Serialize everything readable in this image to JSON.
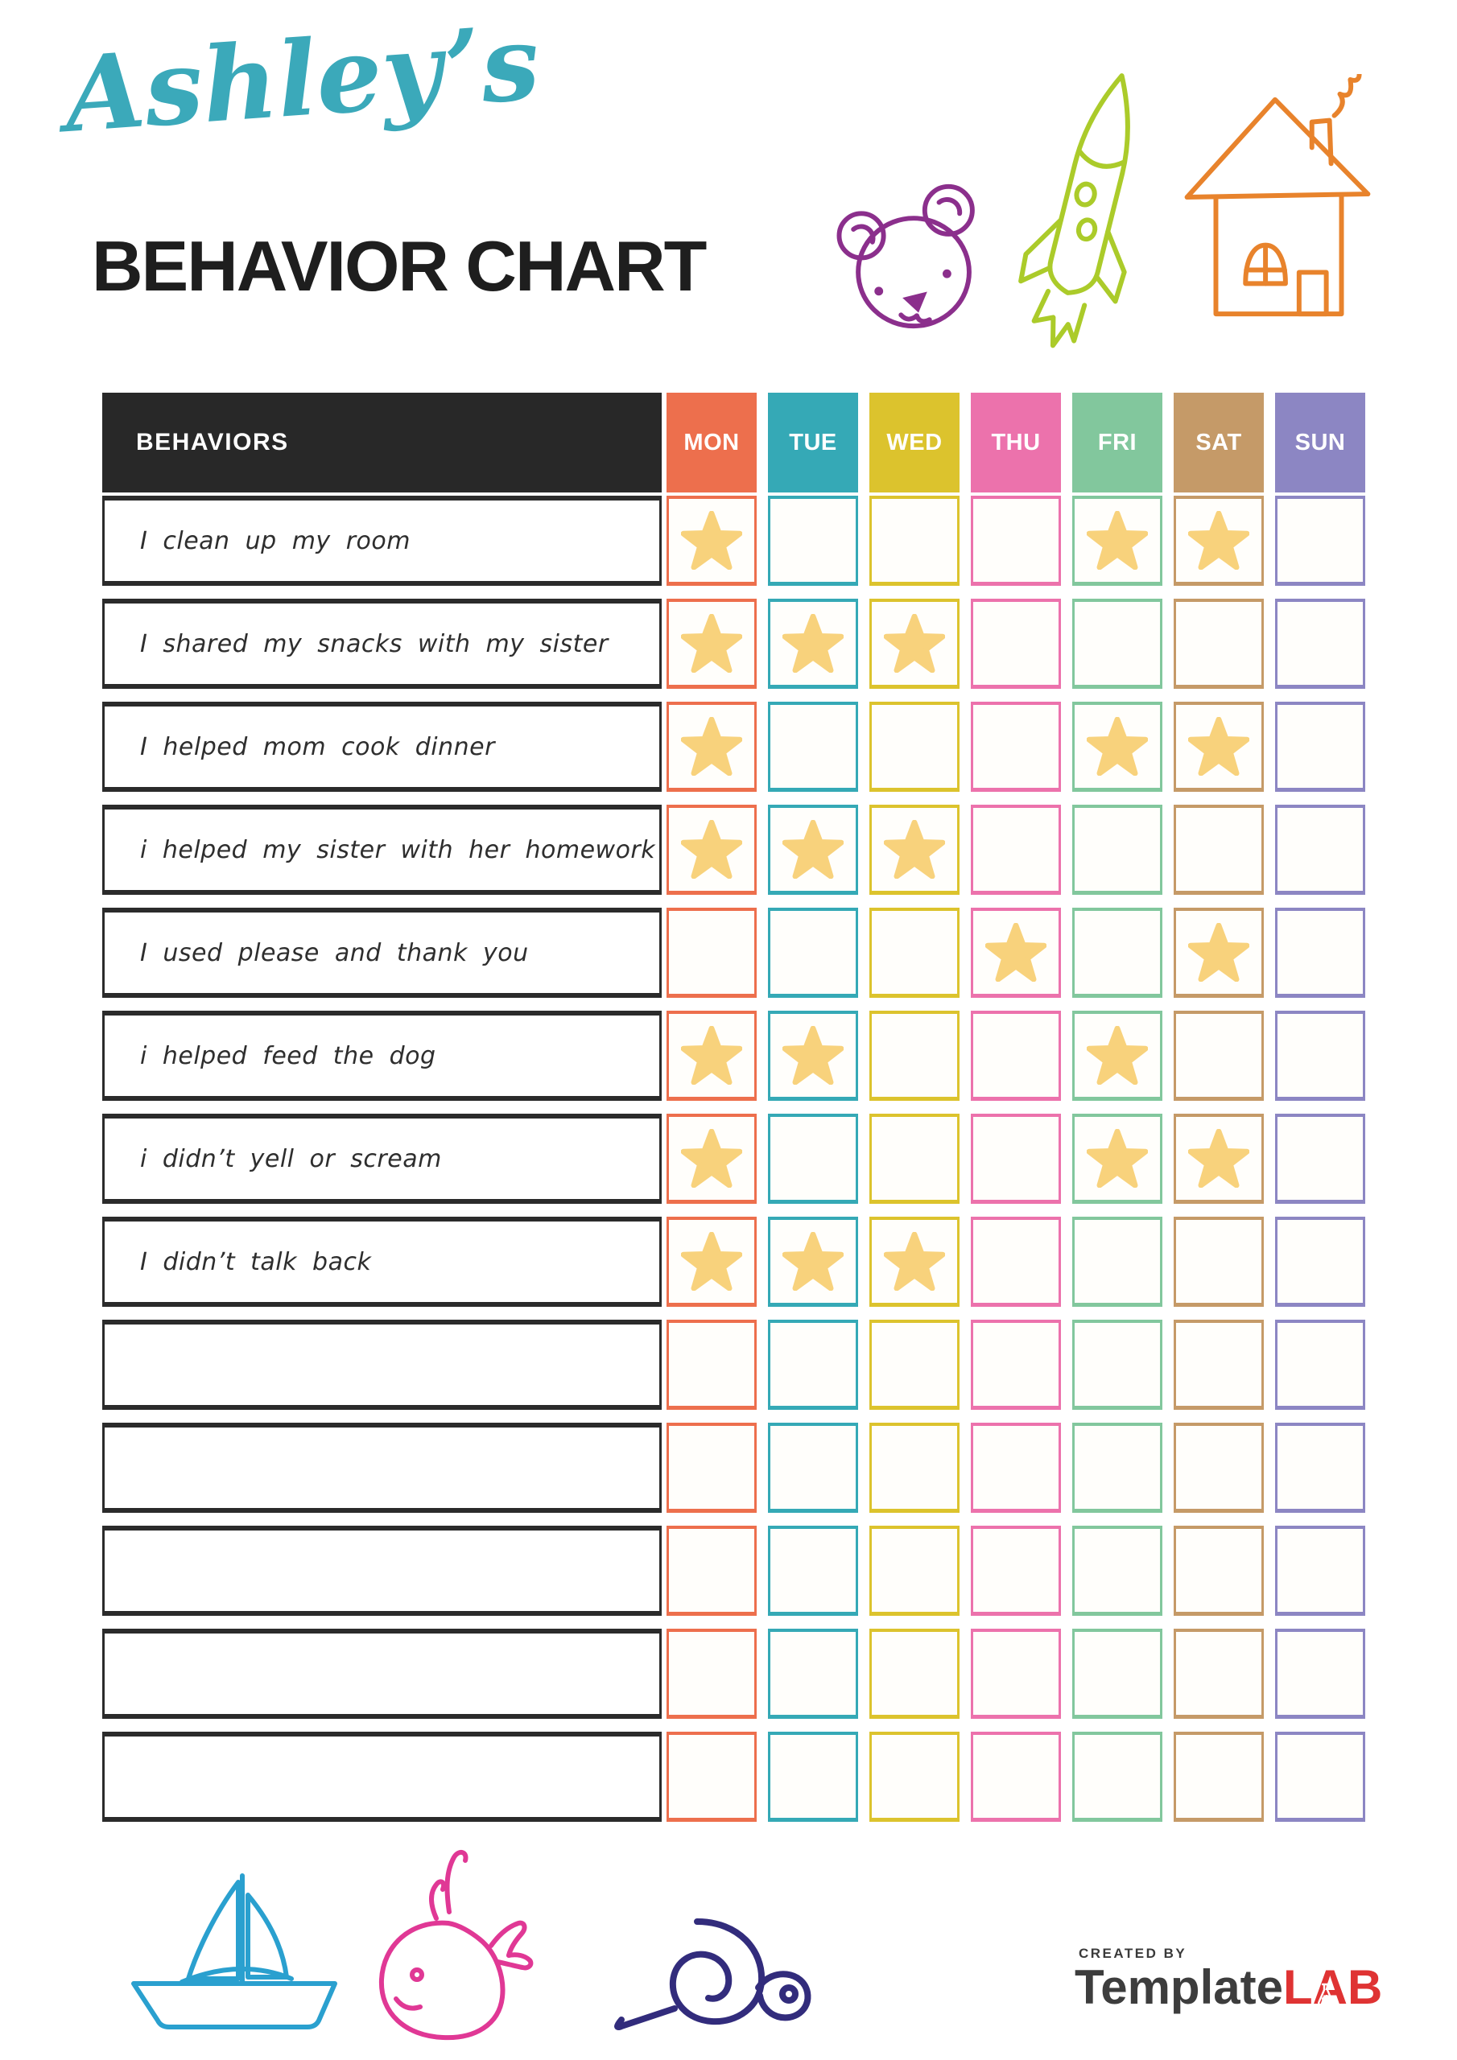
{
  "page": {
    "script_title": "Ashley’s",
    "main_title": "BEHAVIOR CHART",
    "script_title_color": "#3BA9BA"
  },
  "table": {
    "behaviors_header": "BEHAVIORS",
    "header_bg": "#282828",
    "star_color": "#F8D27C",
    "days": [
      {
        "label": "MON",
        "color": "#ED6F4D"
      },
      {
        "label": "TUE",
        "color": "#35A9B6"
      },
      {
        "label": "WED",
        "color": "#DCC32D"
      },
      {
        "label": "THU",
        "color": "#EC72AC"
      },
      {
        "label": "FRI",
        "color": "#82C79D"
      },
      {
        "label": "SAT",
        "color": "#C59A68"
      },
      {
        "label": "SUN",
        "color": "#8C86C3"
      }
    ],
    "rows": [
      {
        "behavior": "I clean up my room",
        "stars": [
          1,
          0,
          0,
          0,
          1,
          1,
          0
        ]
      },
      {
        "behavior": "I shared my snacks with my sister",
        "stars": [
          1,
          1,
          1,
          0,
          0,
          0,
          0
        ]
      },
      {
        "behavior": "I helped mom cook dinner",
        "stars": [
          1,
          0,
          0,
          0,
          1,
          1,
          0
        ]
      },
      {
        "behavior": "i helped my sister with her homework",
        "stars": [
          1,
          1,
          1,
          0,
          0,
          0,
          0
        ]
      },
      {
        "behavior": "I used please and thank you",
        "stars": [
          0,
          0,
          0,
          1,
          0,
          1,
          0
        ]
      },
      {
        "behavior": "i helped feed the dog",
        "stars": [
          1,
          1,
          0,
          0,
          1,
          0,
          0
        ]
      },
      {
        "behavior": "i didn’t yell or scream",
        "stars": [
          1,
          0,
          0,
          0,
          1,
          1,
          0
        ]
      },
      {
        "behavior": "I didn’t talk back",
        "stars": [
          1,
          1,
          1,
          0,
          0,
          0,
          0
        ]
      },
      {
        "behavior": "",
        "stars": [
          0,
          0,
          0,
          0,
          0,
          0,
          0
        ]
      },
      {
        "behavior": "",
        "stars": [
          0,
          0,
          0,
          0,
          0,
          0,
          0
        ]
      },
      {
        "behavior": "",
        "stars": [
          0,
          0,
          0,
          0,
          0,
          0,
          0
        ]
      },
      {
        "behavior": "",
        "stars": [
          0,
          0,
          0,
          0,
          0,
          0,
          0
        ]
      },
      {
        "behavior": "",
        "stars": [
          0,
          0,
          0,
          0,
          0,
          0,
          0
        ]
      }
    ]
  },
  "decorations": {
    "top_icons": [
      {
        "name": "bear",
        "color": "#8B2F8C"
      },
      {
        "name": "rocket",
        "color": "#ABCB2A"
      },
      {
        "name": "house",
        "color": "#E8832C"
      }
    ],
    "bottom_icons": [
      {
        "name": "sailboat",
        "color": "#2AA0CF"
      },
      {
        "name": "whale",
        "color": "#E03895"
      },
      {
        "name": "snail",
        "color": "#322C7C"
      }
    ]
  },
  "footer": {
    "created_by": "CREATED BY",
    "brand": "Template",
    "brand_suffix": "LAB",
    "brand_color": "#3d3d3d",
    "brand_suffix_color": "#DF3333"
  },
  "chart_data": {
    "type": "table",
    "columns": [
      "MON",
      "TUE",
      "WED",
      "THU",
      "FRI",
      "SAT",
      "SUN"
    ],
    "rows": [
      {
        "behavior": "I clean up my room",
        "starred_days": [
          "MON",
          "FRI",
          "SAT"
        ]
      },
      {
        "behavior": "I shared my snacks with my sister",
        "starred_days": [
          "MON",
          "TUE",
          "WED"
        ]
      },
      {
        "behavior": "I helped mom cook dinner",
        "starred_days": [
          "MON",
          "FRI",
          "SAT"
        ]
      },
      {
        "behavior": "i helped my sister with her homework",
        "starred_days": [
          "MON",
          "TUE",
          "WED"
        ]
      },
      {
        "behavior": "I used please and thank you",
        "starred_days": [
          "THU",
          "SAT"
        ]
      },
      {
        "behavior": "i helped feed the dog",
        "starred_days": [
          "MON",
          "TUE",
          "FRI"
        ]
      },
      {
        "behavior": "i didn’t yell or scream",
        "starred_days": [
          "MON",
          "FRI",
          "SAT"
        ]
      },
      {
        "behavior": "I didn’t talk back",
        "starred_days": [
          "MON",
          "TUE",
          "WED"
        ]
      }
    ]
  }
}
